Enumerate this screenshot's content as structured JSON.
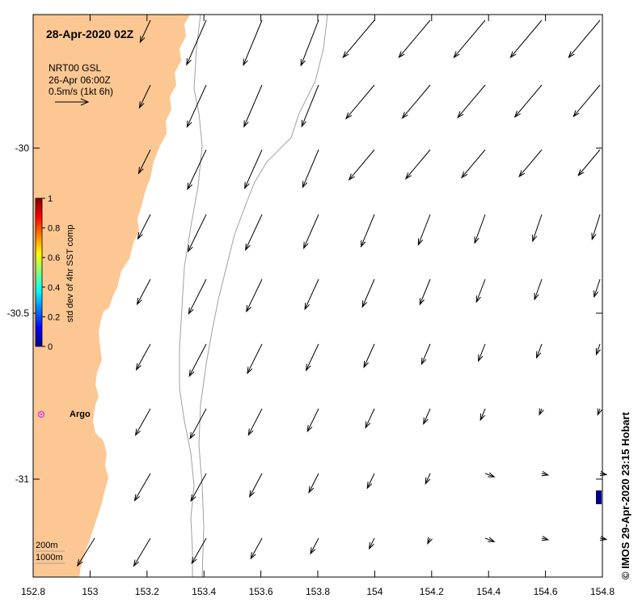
{
  "map": {
    "title": "28-Apr-2020 02Z",
    "product_lines": [
      "NRT00 GSL",
      "26-Apr 06:00Z",
      "0.5m/s (1kt 6h)"
    ],
    "credit": "© IMOS 29-Apr-2020 23:15 Hobart",
    "argo_label": "Argo",
    "argo_color": "#e040e0",
    "land_color": "#fcc793",
    "contour_labels": [
      "200m",
      "1000m"
    ],
    "x_ticks": [
      "152.8",
      "153",
      "153.2",
      "153.4",
      "153.6",
      "153.8",
      "154",
      "154.2",
      "154.4",
      "154.6",
      "154.8"
    ],
    "y_ticks": [
      "-30",
      "-30.5",
      "-31"
    ],
    "lon_range": [
      152.8,
      154.8
    ],
    "colorbar": {
      "label": "std dev of 4hr SST comp",
      "ticks": [
        "1",
        "0.8",
        "0.6",
        "0.4",
        "0.2",
        "0"
      ],
      "colormap": "jet"
    }
  }
}
